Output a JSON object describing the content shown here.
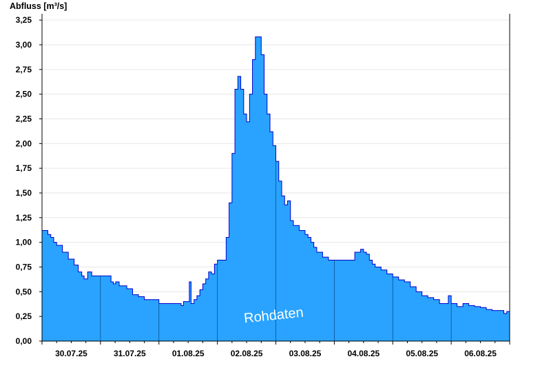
{
  "chart_data": {
    "type": "area",
    "ylabel": "Abfluss [m³/s]",
    "watermark": "Rohdaten",
    "ylim": [
      0,
      3.3
    ],
    "xlim": [
      0,
      8
    ],
    "grid": true,
    "fill_color": "#29a3ff",
    "line_color": "#0000cc",
    "yticks": [
      "0,00",
      "0,25",
      "0,50",
      "0,75",
      "1,00",
      "1,25",
      "1,50",
      "1,75",
      "2,00",
      "2,25",
      "2,50",
      "2,75",
      "3,00",
      "3,25"
    ],
    "xticks": [
      "30.07.25",
      "31.07.25",
      "01.08.25",
      "02.08.25",
      "03.08.25",
      "04.08.25",
      "05.08.25",
      "06.08.25"
    ],
    "series": [
      {
        "x": [
          0,
          0.05,
          0.1,
          0.15,
          0.2,
          0.25,
          0.35,
          0.45,
          0.55,
          0.62,
          0.68,
          0.72,
          0.78,
          0.85,
          1.0,
          1.1,
          1.18,
          1.22,
          1.26,
          1.32,
          1.45,
          1.55,
          1.65,
          1.75,
          1.85,
          2.0,
          2.3,
          2.38,
          2.42,
          2.48,
          2.52,
          2.55,
          2.6,
          2.65,
          2.7,
          2.75,
          2.8,
          2.85,
          2.9,
          2.95,
          3.0,
          3.05,
          3.1,
          3.15,
          3.2,
          3.25,
          3.3,
          3.35,
          3.4,
          3.45,
          3.5,
          3.55,
          3.6,
          3.65,
          3.7,
          3.75,
          3.8,
          3.85,
          3.9,
          3.95,
          4.0,
          4.05,
          4.1,
          4.15,
          4.2,
          4.25,
          4.3,
          4.35,
          4.4,
          4.45,
          4.5,
          4.55,
          4.6,
          4.65,
          4.7,
          4.8,
          4.9,
          5.0,
          5.1,
          5.2,
          5.35,
          5.45,
          5.5,
          5.55,
          5.6,
          5.65,
          5.7,
          5.8,
          5.9,
          6.0,
          6.1,
          6.2,
          6.3,
          6.4,
          6.5,
          6.6,
          6.7,
          6.8,
          6.9,
          6.95,
          7.0,
          7.1,
          7.2,
          7.3,
          7.4,
          7.5,
          7.6,
          7.7,
          7.8,
          7.9,
          7.95,
          8.0
        ],
        "y": [
          1.12,
          1.12,
          1.08,
          1.05,
          1.0,
          0.97,
          0.9,
          0.83,
          0.77,
          0.7,
          0.66,
          0.63,
          0.7,
          0.66,
          0.66,
          0.66,
          0.6,
          0.58,
          0.6,
          0.56,
          0.53,
          0.47,
          0.45,
          0.42,
          0.42,
          0.38,
          0.38,
          0.36,
          0.4,
          0.4,
          0.6,
          0.38,
          0.42,
          0.46,
          0.52,
          0.58,
          0.63,
          0.7,
          0.68,
          0.78,
          0.82,
          0.82,
          0.82,
          1.05,
          1.4,
          1.9,
          2.55,
          2.68,
          2.55,
          2.3,
          2.22,
          2.5,
          2.85,
          3.08,
          3.08,
          2.9,
          2.5,
          2.3,
          2.12,
          1.98,
          1.82,
          1.62,
          1.47,
          1.38,
          1.42,
          1.22,
          1.17,
          1.17,
          1.12,
          1.12,
          1.08,
          1.05,
          1.0,
          0.95,
          0.9,
          0.85,
          0.82,
          0.82,
          0.82,
          0.82,
          0.9,
          0.93,
          0.9,
          0.88,
          0.82,
          0.78,
          0.75,
          0.72,
          0.68,
          0.65,
          0.62,
          0.6,
          0.55,
          0.5,
          0.46,
          0.44,
          0.42,
          0.38,
          0.38,
          0.46,
          0.38,
          0.35,
          0.38,
          0.36,
          0.35,
          0.34,
          0.32,
          0.31,
          0.31,
          0.28,
          0.3,
          0.31
        ]
      }
    ]
  }
}
